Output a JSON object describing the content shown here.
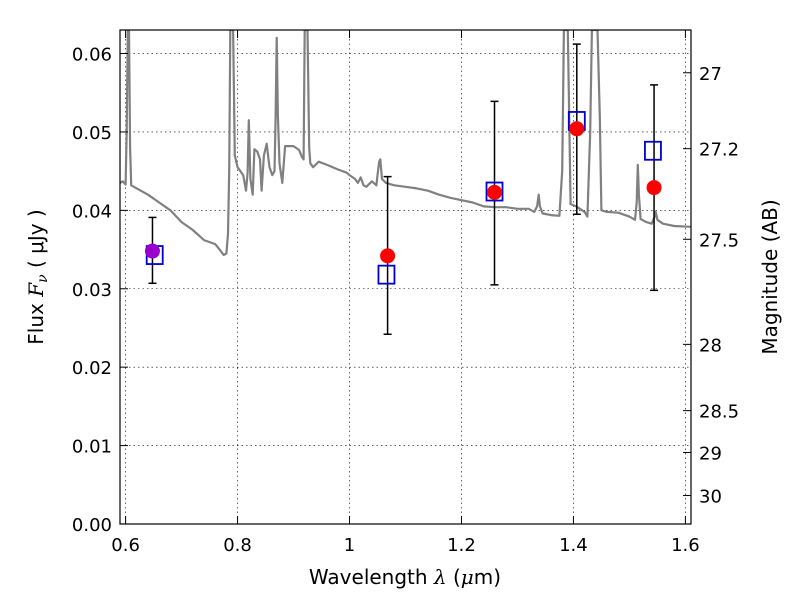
{
  "chart_data": {
    "type": "scatter",
    "xlabel": {
      "prefix": "Wavelength  ",
      "symbol": "λ",
      "unit_open": " (",
      "unit_mu": "μ",
      "unit_rest": "m)"
    },
    "ylabel": {
      "prefix": "Flux  ",
      "symbol": "F",
      "subscript": "ν",
      "unit": "  ( μJy )"
    },
    "ylabel_right": "Magnitude (AB)",
    "xlim": [
      0.59,
      1.61
    ],
    "ylim": [
      0.0,
      0.063
    ],
    "grid": true,
    "x_ticks": [
      {
        "value": 0.6,
        "label": "0.6"
      },
      {
        "value": 0.8,
        "label": "0.8"
      },
      {
        "value": 1.0,
        "label": "1"
      },
      {
        "value": 1.2,
        "label": "1.2"
      },
      {
        "value": 1.4,
        "label": "1.4"
      },
      {
        "value": 1.6,
        "label": "1.6"
      }
    ],
    "y_ticks": [
      {
        "value": 0.0,
        "label": "0.00"
      },
      {
        "value": 0.01,
        "label": "0.01"
      },
      {
        "value": 0.02,
        "label": "0.02"
      },
      {
        "value": 0.03,
        "label": "0.03"
      },
      {
        "value": 0.04,
        "label": "0.04"
      },
      {
        "value": 0.05,
        "label": "0.05"
      },
      {
        "value": 0.06,
        "label": "0.06"
      }
    ],
    "right_ticks": [
      {
        "value": 27.0,
        "label": "27"
      },
      {
        "value": 27.2,
        "label": "27.2"
      },
      {
        "value": 27.5,
        "label": "27.5"
      },
      {
        "value": 28.0,
        "label": "28"
      },
      {
        "value": 28.5,
        "label": "28.5"
      },
      {
        "value": 29.0,
        "label": "29"
      },
      {
        "value": 30.0,
        "label": "30"
      }
    ],
    "observed": {
      "color": "#ff0000",
      "points": [
        {
          "x": 0.648,
          "y": 0.0348,
          "err_low": 0.0307,
          "err_high": 0.0391
        },
        {
          "x": 1.068,
          "y": 0.0342,
          "err_low": 0.0242,
          "err_high": 0.0443
        },
        {
          "x": 1.259,
          "y": 0.0423,
          "err_low": 0.0305,
          "err_high": 0.0539
        },
        {
          "x": 1.406,
          "y": 0.0504,
          "err_low": 0.0395,
          "err_high": 0.0612
        },
        {
          "x": 1.544,
          "y": 0.0429,
          "err_low": 0.0298,
          "err_high": 0.056
        }
      ]
    },
    "overlap_color": "#9900cc",
    "model_boxes": {
      "color": "#0000cc",
      "points": [
        {
          "x": 0.652,
          "y": 0.0343
        },
        {
          "x": 1.066,
          "y": 0.0318
        },
        {
          "x": 1.259,
          "y": 0.0424
        },
        {
          "x": 1.406,
          "y": 0.0514
        },
        {
          "x": 1.542,
          "y": 0.0476
        }
      ]
    },
    "sed": {
      "color": "#808080",
      "points": [
        [
          0.59,
          0.0435
        ],
        [
          0.595,
          0.0437
        ],
        [
          0.6,
          0.0433
        ],
        [
          0.602,
          0.05
        ],
        [
          0.604,
          0.063
        ],
        [
          0.606,
          0.063
        ],
        [
          0.608,
          0.048
        ],
        [
          0.61,
          0.0432
        ],
        [
          0.62,
          0.0428
        ],
        [
          0.64,
          0.042
        ],
        [
          0.66,
          0.041
        ],
        [
          0.68,
          0.04
        ],
        [
          0.7,
          0.0385
        ],
        [
          0.72,
          0.0375
        ],
        [
          0.74,
          0.0362
        ],
        [
          0.76,
          0.0357
        ],
        [
          0.77,
          0.0348
        ],
        [
          0.775,
          0.0343
        ],
        [
          0.78,
          0.0345
        ],
        [
          0.783,
          0.037
        ],
        [
          0.785,
          0.045
        ],
        [
          0.787,
          0.063
        ],
        [
          0.792,
          0.063
        ],
        [
          0.795,
          0.047
        ],
        [
          0.8,
          0.0455
        ],
        [
          0.81,
          0.0445
        ],
        [
          0.815,
          0.0425
        ],
        [
          0.818,
          0.0448
        ],
        [
          0.82,
          0.0515
        ],
        [
          0.823,
          0.044
        ],
        [
          0.827,
          0.042
        ],
        [
          0.83,
          0.0478
        ],
        [
          0.835,
          0.0475
        ],
        [
          0.84,
          0.0465
        ],
        [
          0.843,
          0.0425
        ],
        [
          0.847,
          0.047
        ],
        [
          0.852,
          0.0485
        ],
        [
          0.857,
          0.0455
        ],
        [
          0.862,
          0.0445
        ],
        [
          0.866,
          0.045
        ],
        [
          0.868,
          0.0518
        ],
        [
          0.87,
          0.062
        ],
        [
          0.872,
          0.052
        ],
        [
          0.875,
          0.046
        ],
        [
          0.88,
          0.0435
        ],
        [
          0.885,
          0.0482
        ],
        [
          0.9,
          0.0482
        ],
        [
          0.91,
          0.0477
        ],
        [
          0.915,
          0.0468
        ],
        [
          0.918,
          0.0465
        ],
        [
          0.92,
          0.063
        ],
        [
          0.925,
          0.063
        ],
        [
          0.928,
          0.048
        ],
        [
          0.93,
          0.046
        ],
        [
          0.935,
          0.0455
        ],
        [
          0.945,
          0.0462
        ],
        [
          0.96,
          0.0458
        ],
        [
          0.98,
          0.0452
        ],
        [
          0.995,
          0.0448
        ],
        [
          1.0,
          0.0445
        ],
        [
          1.01,
          0.044
        ],
        [
          1.015,
          0.0435
        ],
        [
          1.02,
          0.0442
        ],
        [
          1.025,
          0.0432
        ],
        [
          1.03,
          0.043
        ],
        [
          1.04,
          0.0437
        ],
        [
          1.048,
          0.0432
        ],
        [
          1.05,
          0.0445
        ],
        [
          1.053,
          0.0462
        ],
        [
          1.055,
          0.0465
        ],
        [
          1.058,
          0.044
        ],
        [
          1.065,
          0.0435
        ],
        [
          1.08,
          0.0432
        ],
        [
          1.1,
          0.043
        ],
        [
          1.12,
          0.0428
        ],
        [
          1.14,
          0.0425
        ],
        [
          1.16,
          0.042
        ],
        [
          1.18,
          0.0416
        ],
        [
          1.2,
          0.0413
        ],
        [
          1.22,
          0.041
        ],
        [
          1.24,
          0.0405
        ],
        [
          1.26,
          0.0404
        ],
        [
          1.28,
          0.0404
        ],
        [
          1.3,
          0.0402
        ],
        [
          1.32,
          0.0402
        ],
        [
          1.33,
          0.0398
        ],
        [
          1.335,
          0.0405
        ],
        [
          1.338,
          0.042
        ],
        [
          1.34,
          0.0405
        ],
        [
          1.345,
          0.0396
        ],
        [
          1.36,
          0.0394
        ],
        [
          1.375,
          0.0393
        ],
        [
          1.38,
          0.045
        ],
        [
          1.383,
          0.063
        ],
        [
          1.39,
          0.063
        ],
        [
          1.395,
          0.0408
        ],
        [
          1.405,
          0.0405
        ],
        [
          1.42,
          0.0398
        ],
        [
          1.425,
          0.0392
        ],
        [
          1.43,
          0.05
        ],
        [
          1.433,
          0.063
        ],
        [
          1.443,
          0.063
        ],
        [
          1.447,
          0.052
        ],
        [
          1.45,
          0.04
        ],
        [
          1.46,
          0.0398
        ],
        [
          1.48,
          0.0397
        ],
        [
          1.5,
          0.0392
        ],
        [
          1.51,
          0.0388
        ],
        [
          1.513,
          0.041
        ],
        [
          1.515,
          0.0458
        ],
        [
          1.517,
          0.042
        ],
        [
          1.52,
          0.0389
        ],
        [
          1.53,
          0.0385
        ],
        [
          1.54,
          0.0383
        ],
        [
          1.545,
          0.0392
        ],
        [
          1.547,
          0.0398
        ],
        [
          1.55,
          0.0388
        ],
        [
          1.56,
          0.0383
        ],
        [
          1.58,
          0.038
        ],
        [
          1.61,
          0.0379
        ]
      ]
    }
  }
}
